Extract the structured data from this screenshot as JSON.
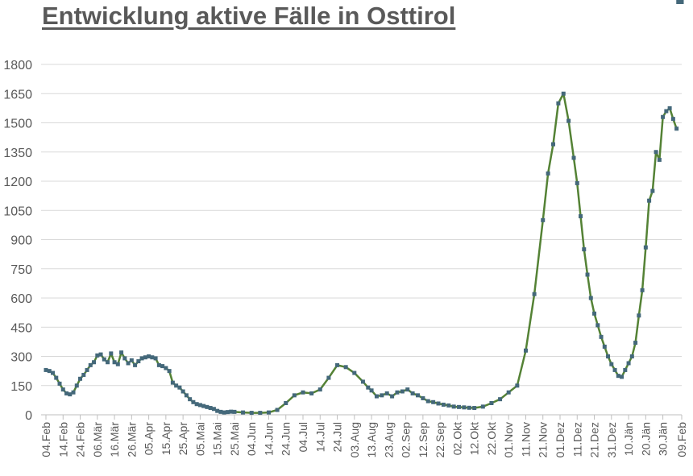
{
  "chart_data": {
    "type": "line",
    "title": "Entwicklung aktive Fälle in Osttirol",
    "xlabel": "",
    "ylabel": "",
    "ylim": [
      0,
      1800
    ],
    "yticks": [
      0,
      150,
      300,
      450,
      600,
      750,
      900,
      1050,
      1200,
      1350,
      1500,
      1650,
      1800
    ],
    "grid": true,
    "legend": null,
    "series_colors": {
      "line": "#548235",
      "marker": "#44687A"
    },
    "x_tick_labels": [
      "04.Feb",
      "14.Feb",
      "24.Feb",
      "06.Mär",
      "16.Mär",
      "26.Mär",
      "05.Apr",
      "15.Apr",
      "25.Apr",
      "05.Mai",
      "15.Mai",
      "25.Mai",
      "04.Jun",
      "14.Jun",
      "24.Jun",
      "04.Jul",
      "14.Jul",
      "24.Jul",
      "03.Aug",
      "13.Aug",
      "23.Aug",
      "02.Sep",
      "12.Sep",
      "22.Sep",
      "02.Okt",
      "12.Okt",
      "22.Okt",
      "01.Nov",
      "11.Nov",
      "21.Nov",
      "01.Dez",
      "11.Dez",
      "21.Dez",
      "31.Dez",
      "10.Jän",
      "20.Jän",
      "30.Jän",
      "09.Feb"
    ],
    "series": [
      {
        "name": "aktive Fälle",
        "x_days": [
          0,
          2,
          4,
          6,
          8,
          10,
          12,
          14,
          16,
          18,
          20,
          22,
          24,
          26,
          28,
          30,
          32,
          34,
          36,
          38,
          40,
          42,
          44,
          46,
          48,
          50,
          52,
          54,
          56,
          58,
          60,
          62,
          64,
          66,
          68,
          70,
          72,
          74,
          76,
          78,
          80,
          82,
          84,
          86,
          88,
          90,
          92,
          94,
          96,
          98,
          100,
          102,
          104,
          106,
          108,
          110,
          115,
          120,
          125,
          130,
          135,
          140,
          145,
          150,
          155,
          160,
          165,
          170,
          175,
          180,
          185,
          188,
          190,
          193,
          196,
          199,
          202,
          205,
          208,
          211,
          214,
          217,
          220,
          223,
          226,
          229,
          232,
          235,
          238,
          241,
          244,
          247,
          250,
          255,
          260,
          265,
          270,
          275,
          280,
          285,
          290,
          293,
          296,
          299,
          302,
          305,
          308,
          310,
          312,
          314,
          316,
          318,
          320,
          322,
          324,
          326,
          328,
          330,
          332,
          334,
          336,
          338,
          340,
          342,
          344,
          346,
          348,
          350,
          352,
          354,
          356,
          358,
          360,
          362,
          364,
          366,
          368,
          369,
          370,
          371
        ],
        "values": [
          230,
          225,
          215,
          190,
          160,
          130,
          110,
          105,
          115,
          150,
          185,
          205,
          230,
          255,
          270,
          305,
          310,
          285,
          270,
          315,
          270,
          260,
          320,
          290,
          265,
          280,
          255,
          275,
          290,
          295,
          300,
          295,
          290,
          255,
          250,
          240,
          225,
          165,
          150,
          140,
          120,
          100,
          80,
          65,
          55,
          50,
          45,
          40,
          35,
          30,
          20,
          15,
          12,
          14,
          16,
          15,
          12,
          10,
          10,
          12,
          25,
          60,
          100,
          115,
          110,
          130,
          190,
          255,
          245,
          215,
          170,
          140,
          125,
          95,
          100,
          110,
          95,
          115,
          120,
          130,
          110,
          100,
          85,
          70,
          65,
          58,
          52,
          48,
          42,
          40,
          38,
          36,
          35,
          42,
          60,
          80,
          115,
          150,
          330,
          620,
          1000,
          1240,
          1390,
          1600,
          1650,
          1510,
          1320,
          1190,
          1020,
          850,
          720,
          600,
          520,
          460,
          400,
          350,
          300,
          260,
          230,
          200,
          195,
          230,
          265,
          300,
          370,
          510,
          640,
          860,
          1100,
          1150,
          1350,
          1310,
          1530,
          1560,
          1575,
          1520,
          1470
        ]
      }
    ]
  }
}
